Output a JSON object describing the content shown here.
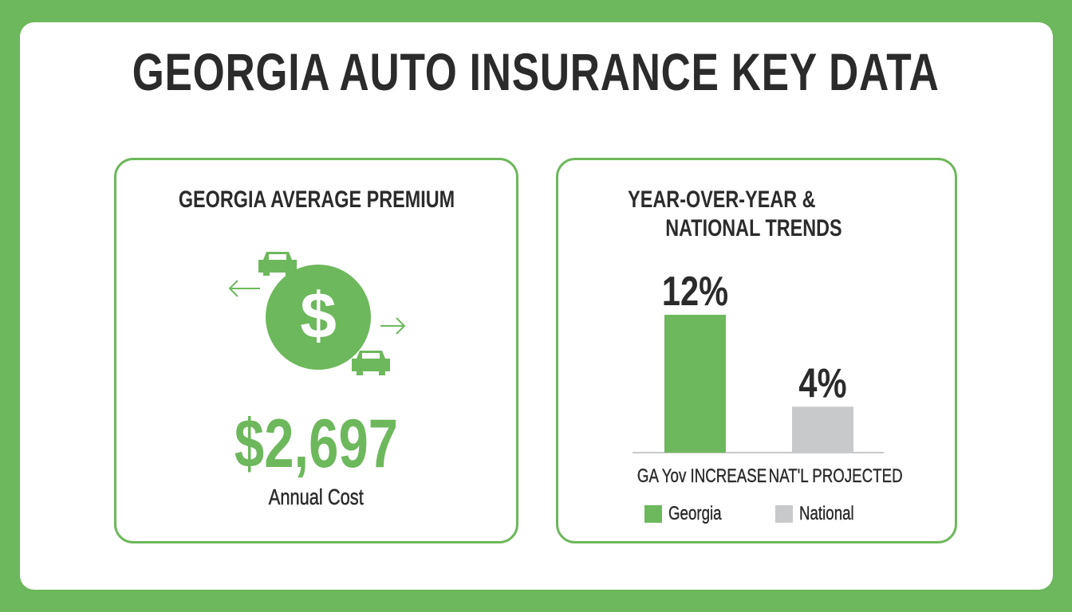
{
  "title": "GEORGIA AUTO INSURANCE KEY DATA",
  "colors": {
    "brand_green": "#6db85c",
    "national_gray": "#c8c9cb",
    "text": "#2b2b2b"
  },
  "left_card": {
    "heading": "GEORGIA AVERAGE PREMIUM",
    "icons": [
      "dollar-circle-icon",
      "car-icon",
      "car-icon",
      "arrow-left-icon",
      "arrow-right-icon"
    ],
    "value": "$2,697",
    "caption": "Annual Cost"
  },
  "right_card": {
    "heading_line1": "YEAR-OVER-YEAR &",
    "heading_line2": "NATIONAL TRENDS"
  },
  "chart_data": {
    "type": "bar",
    "categories": [
      "GA Yov INCREASE",
      "NAT'L PROJECTED"
    ],
    "values": [
      12,
      4
    ],
    "data_labels": [
      "12%",
      "4%"
    ],
    "colors": [
      "#6db85c",
      "#c8c9cb"
    ],
    "legend": [
      {
        "label": "Georgia",
        "color": "#6db85c"
      },
      {
        "label": "National",
        "color": "#c8c9cb"
      }
    ],
    "legend_placement": "bottom",
    "grid": false,
    "ylim": [
      0,
      12
    ]
  }
}
